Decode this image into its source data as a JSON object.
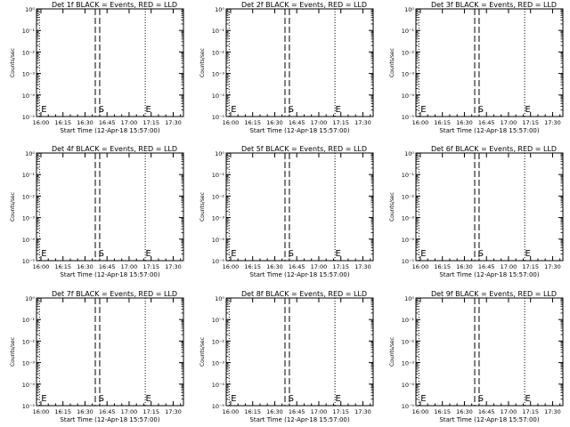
{
  "chart_data": [
    {
      "type": "line",
      "title": "Det 1f BLACK = Events, RED = LLD",
      "xlabel": "Start Time (12-Apr-18 15:57:00)",
      "ylabel": "Counts/sec",
      "xticks": [
        "16:00",
        "16:15",
        "16:30",
        "16:45",
        "17:00",
        "17:15",
        "17:30"
      ],
      "yticks": [
        "10⁰",
        "10⁻¹",
        "10⁻²",
        "10⁻³",
        "10⁻⁴",
        "10⁻⁵"
      ],
      "xlim": [
        "15:57",
        "17:37"
      ],
      "ylim": [
        -5,
        0
      ],
      "y_scale": "log",
      "series": [],
      "markers": [
        {
          "label": "E",
          "time": "15:59"
        },
        {
          "label": "S",
          "time": "16:38"
        },
        {
          "label": "E",
          "time": "17:10"
        }
      ],
      "dashed_lines": [
        "16:37",
        "16:40"
      ],
      "dotted_lines": [
        "15:59",
        "17:11"
      ]
    },
    {
      "type": "line",
      "title": "Det 2f BLACK = Events, RED = LLD",
      "xlabel": "Start Time (12-Apr-18 15:57:00)",
      "ylabel": "Counts/sec",
      "xticks": [
        "16:00",
        "16:15",
        "16:30",
        "16:45",
        "17:00",
        "17:15",
        "17:30"
      ],
      "yticks": [
        "10⁰",
        "10⁻¹",
        "10⁻²",
        "10⁻³",
        "10⁻⁴",
        "10⁻⁵"
      ],
      "xlim": [
        "15:57",
        "17:37"
      ],
      "ylim": [
        -5,
        0
      ],
      "y_scale": "log",
      "series": [],
      "markers": [
        {
          "label": "E",
          "time": "15:59"
        },
        {
          "label": "S",
          "time": "16:38"
        },
        {
          "label": "E",
          "time": "17:10"
        }
      ],
      "dashed_lines": [
        "16:37",
        "16:40"
      ],
      "dotted_lines": [
        "15:59",
        "17:11"
      ]
    },
    {
      "type": "line",
      "title": "Det 3f BLACK = Events, RED = LLD",
      "xlabel": "Start Time (12-Apr-18 15:57:00)",
      "ylabel": "Counts/sec",
      "xticks": [
        "16:00",
        "16:15",
        "16:30",
        "16:45",
        "17:00",
        "17:15",
        "17:30"
      ],
      "yticks": [
        "10⁰",
        "10⁻¹",
        "10⁻²",
        "10⁻³",
        "10⁻⁴",
        "10⁻⁵"
      ],
      "xlim": [
        "15:57",
        "17:37"
      ],
      "ylim": [
        -5,
        0
      ],
      "y_scale": "log",
      "series": [],
      "markers": [
        {
          "label": "E",
          "time": "15:59"
        },
        {
          "label": "S",
          "time": "16:38"
        },
        {
          "label": "E",
          "time": "17:10"
        }
      ],
      "dashed_lines": [
        "16:37",
        "16:40"
      ],
      "dotted_lines": [
        "15:59",
        "17:11"
      ]
    },
    {
      "type": "line",
      "title": "Det 4f BLACK = Events, RED = LLD",
      "xlabel": "Start Time (12-Apr-18 15:57:00)",
      "ylabel": "Counts/sec",
      "xticks": [
        "16:00",
        "16:15",
        "16:30",
        "16:45",
        "17:00",
        "17:15",
        "17:30"
      ],
      "yticks": [
        "10⁰",
        "10⁻¹",
        "10⁻²",
        "10⁻³",
        "10⁻⁴",
        "10⁻⁵"
      ],
      "xlim": [
        "15:57",
        "17:37"
      ],
      "ylim": [
        -5,
        0
      ],
      "y_scale": "log",
      "series": [],
      "markers": [
        {
          "label": "E",
          "time": "15:59"
        },
        {
          "label": "S",
          "time": "16:38"
        },
        {
          "label": "E",
          "time": "17:10"
        }
      ],
      "dashed_lines": [
        "16:37",
        "16:40"
      ],
      "dotted_lines": [
        "15:59",
        "17:11"
      ]
    },
    {
      "type": "line",
      "title": "Det 5f BLACK = Events, RED = LLD",
      "xlabel": "Start Time (12-Apr-18 15:57:00)",
      "ylabel": "Counts/sec",
      "xticks": [
        "16:00",
        "16:15",
        "16:30",
        "16:45",
        "17:00",
        "17:15",
        "17:30"
      ],
      "yticks": [
        "10⁰",
        "10⁻¹",
        "10⁻²",
        "10⁻³",
        "10⁻⁴",
        "10⁻⁵"
      ],
      "xlim": [
        "15:57",
        "17:37"
      ],
      "ylim": [
        -5,
        0
      ],
      "y_scale": "log",
      "series": [],
      "markers": [
        {
          "label": "E",
          "time": "15:59"
        },
        {
          "label": "S",
          "time": "16:38"
        },
        {
          "label": "E",
          "time": "17:10"
        }
      ],
      "dashed_lines": [
        "16:37",
        "16:40"
      ],
      "dotted_lines": [
        "15:59",
        "17:11"
      ]
    },
    {
      "type": "line",
      "title": "Det 6f BLACK = Events, RED = LLD",
      "xlabel": "Start Time (12-Apr-18 15:57:00)",
      "ylabel": "Counts/sec",
      "xticks": [
        "16:00",
        "16:15",
        "16:30",
        "16:45",
        "17:00",
        "17:15",
        "17:30"
      ],
      "yticks": [
        "10⁰",
        "10⁻¹",
        "10⁻²",
        "10⁻³",
        "10⁻⁴",
        "10⁻⁵"
      ],
      "xlim": [
        "15:57",
        "17:37"
      ],
      "ylim": [
        -5,
        0
      ],
      "y_scale": "log",
      "series": [],
      "markers": [
        {
          "label": "E",
          "time": "15:59"
        },
        {
          "label": "S",
          "time": "16:38"
        },
        {
          "label": "E",
          "time": "17:10"
        }
      ],
      "dashed_lines": [
        "16:37",
        "16:40"
      ],
      "dotted_lines": [
        "15:59",
        "17:11"
      ]
    },
    {
      "type": "line",
      "title": "Det 7f BLACK = Events, RED = LLD",
      "xlabel": "Start Time (12-Apr-18 15:57:00)",
      "ylabel": "Counts/sec",
      "xticks": [
        "16:00",
        "16:15",
        "16:30",
        "16:45",
        "17:00",
        "17:15",
        "17:30"
      ],
      "yticks": [
        "10⁰",
        "10⁻¹",
        "10⁻²",
        "10⁻³",
        "10⁻⁴",
        "10⁻⁵"
      ],
      "xlim": [
        "15:57",
        "17:37"
      ],
      "ylim": [
        -5,
        0
      ],
      "y_scale": "log",
      "series": [],
      "markers": [
        {
          "label": "E",
          "time": "15:59"
        },
        {
          "label": "S",
          "time": "16:38"
        },
        {
          "label": "E",
          "time": "17:10"
        }
      ],
      "dashed_lines": [
        "16:37",
        "16:40"
      ],
      "dotted_lines": [
        "15:59",
        "17:11"
      ]
    },
    {
      "type": "line",
      "title": "Det 8f BLACK = Events, RED = LLD",
      "xlabel": "Start Time (12-Apr-18 15:57:00)",
      "ylabel": "Counts/sec",
      "xticks": [
        "16:00",
        "16:15",
        "16:30",
        "16:45",
        "17:00",
        "17:15",
        "17:30"
      ],
      "yticks": [
        "10⁰",
        "10⁻¹",
        "10⁻²",
        "10⁻³",
        "10⁻⁴",
        "10⁻⁵"
      ],
      "xlim": [
        "15:57",
        "17:37"
      ],
      "ylim": [
        -5,
        0
      ],
      "y_scale": "log",
      "series": [],
      "markers": [
        {
          "label": "E",
          "time": "15:59"
        },
        {
          "label": "S",
          "time": "16:38"
        },
        {
          "label": "E",
          "time": "17:10"
        }
      ],
      "dashed_lines": [
        "16:37",
        "16:40"
      ],
      "dotted_lines": [
        "15:59",
        "17:11"
      ]
    },
    {
      "type": "line",
      "title": "Det 9f BLACK = Events, RED = LLD",
      "xlabel": "Start Time (12-Apr-18 15:57:00)",
      "ylabel": "Counts/sec",
      "xticks": [
        "16:00",
        "16:15",
        "16:30",
        "16:45",
        "17:00",
        "17:15",
        "17:30"
      ],
      "yticks": [
        "10⁰",
        "10⁻¹",
        "10⁻²",
        "10⁻³",
        "10⁻⁴",
        "10⁻⁵"
      ],
      "xlim": [
        "15:57",
        "17:37"
      ],
      "ylim": [
        -5,
        0
      ],
      "y_scale": "log",
      "series": [],
      "markers": [
        {
          "label": "E",
          "time": "15:59"
        },
        {
          "label": "S",
          "time": "16:38"
        },
        {
          "label": "E",
          "time": "17:10"
        }
      ],
      "dashed_lines": [
        "16:37",
        "16:40"
      ],
      "dotted_lines": [
        "15:59",
        "17:11"
      ]
    }
  ]
}
